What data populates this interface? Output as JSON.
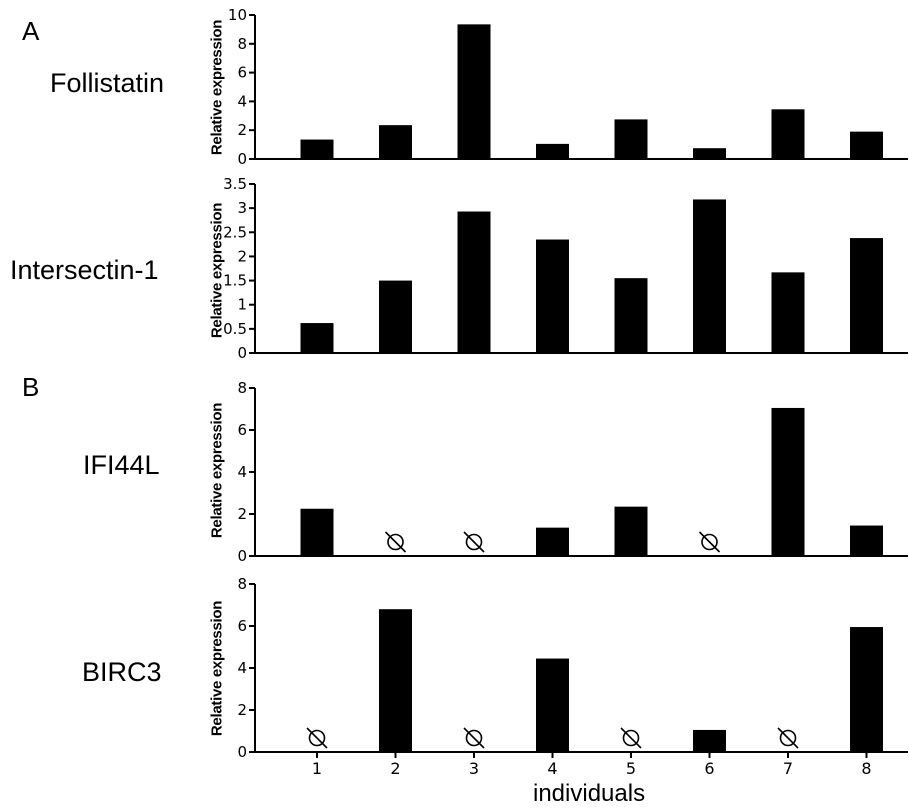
{
  "figure": {
    "panel_letters": [
      "A",
      "B"
    ],
    "x_axis_label": "individuals",
    "bar_color": "#000000",
    "not_detected_marker": "empty-set-symbol"
  },
  "chart_data": [
    {
      "type": "bar",
      "gene": "Follistatin",
      "ylabel": "Relative expression",
      "categories": [
        "1",
        "2",
        "3",
        "4",
        "5",
        "6",
        "7",
        "8"
      ],
      "values": [
        1.35,
        2.35,
        9.35,
        1.05,
        2.75,
        0.75,
        3.45,
        1.9
      ],
      "not_detected": [],
      "ylim": [
        0,
        10
      ],
      "yticks": [
        0,
        2,
        4,
        6,
        8,
        10
      ],
      "ytick_labels": [
        "0",
        "2",
        "4",
        "6",
        "8",
        "10"
      ],
      "show_xticks": false
    },
    {
      "type": "bar",
      "gene": "Intersectin-1",
      "ylabel": "Relative expression",
      "categories": [
        "1",
        "2",
        "3",
        "4",
        "5",
        "6",
        "7",
        "8"
      ],
      "values": [
        0.62,
        1.5,
        2.93,
        2.35,
        1.55,
        3.18,
        1.67,
        2.38
      ],
      "not_detected": [],
      "ylim": [
        0,
        3.5
      ],
      "yticks": [
        0,
        0.5,
        1,
        1.5,
        2,
        2.5,
        3,
        3.5
      ],
      "ytick_labels": [
        "0",
        "0.5",
        "1",
        "1.5",
        "2",
        "2.5",
        "3",
        "3.5"
      ],
      "show_xticks": false
    },
    {
      "type": "bar",
      "gene": "IFI44L",
      "ylabel": "Relative expression",
      "categories": [
        "1",
        "2",
        "3",
        "4",
        "5",
        "6",
        "7",
        "8"
      ],
      "values": [
        2.25,
        0,
        0,
        1.35,
        2.35,
        0,
        7.05,
        1.45
      ],
      "not_detected": [
        "2",
        "3",
        "6"
      ],
      "ylim": [
        0,
        8
      ],
      "yticks": [
        0,
        2,
        4,
        6,
        8
      ],
      "ytick_labels": [
        "0",
        "2",
        "4",
        "6",
        "8"
      ],
      "show_xticks": false
    },
    {
      "type": "bar",
      "gene": "BIRC3",
      "ylabel": "Relative expression",
      "categories": [
        "1",
        "2",
        "3",
        "4",
        "5",
        "6",
        "7",
        "8"
      ],
      "values": [
        0,
        6.8,
        0,
        4.45,
        0,
        1.05,
        0,
        5.95
      ],
      "not_detected": [
        "1",
        "3",
        "5",
        "7"
      ],
      "ylim": [
        0,
        8
      ],
      "yticks": [
        0,
        2,
        4,
        6,
        8
      ],
      "ytick_labels": [
        "0",
        "2",
        "4",
        "6",
        "8"
      ],
      "show_xticks": true
    }
  ]
}
